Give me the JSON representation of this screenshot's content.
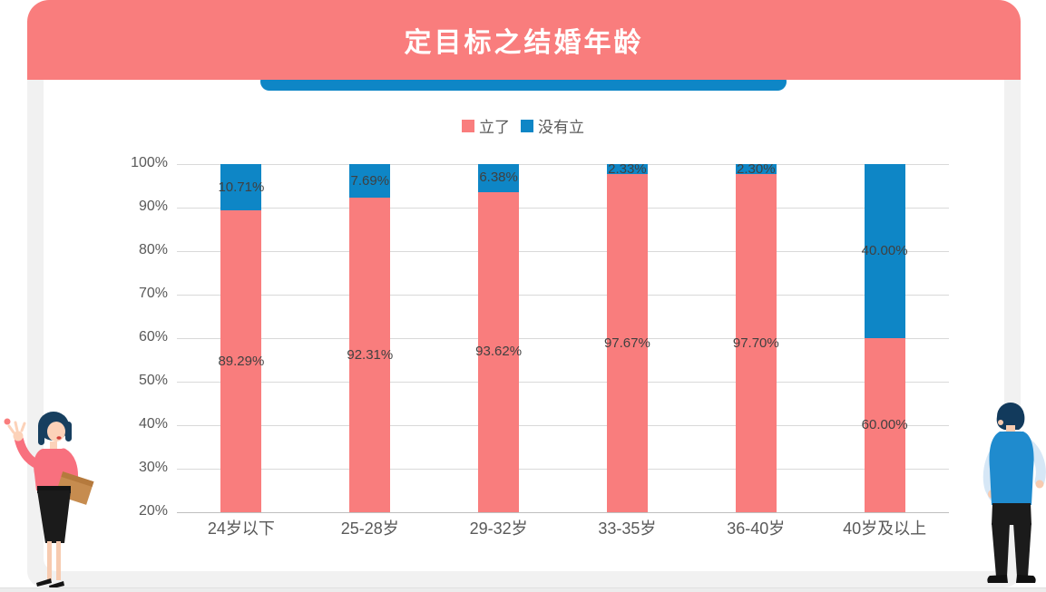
{
  "header": {
    "title": "定目标之结婚年龄"
  },
  "chart_data": {
    "type": "bar",
    "subtype": "stacked-percent-column",
    "title": "定目标之结婚年龄",
    "categories": [
      "24岁以下",
      "25-28岁",
      "29-32岁",
      "33-35岁",
      "36-40岁",
      "40岁及以上"
    ],
    "series": [
      {
        "name": "立了",
        "color": "#f97d7d",
        "values": [
          89.29,
          92.31,
          93.62,
          97.67,
          97.7,
          60.0
        ],
        "labels": [
          "89.29%",
          "92.31%",
          "93.62%",
          "97.67%",
          "97.70%",
          "60.00%"
        ]
      },
      {
        "name": "没有立",
        "color": "#0e86c6",
        "values": [
          10.71,
          7.69,
          6.38,
          2.33,
          2.3,
          40.0
        ],
        "labels": [
          "10.71%",
          "7.69%",
          "6.38%",
          "2.33%",
          "2.30%",
          "40.00%"
        ]
      }
    ],
    "xlabel": "",
    "ylabel": "",
    "ylim": [
      20,
      100
    ],
    "yticks": [
      "100%",
      "90%",
      "80%",
      "70%",
      "60%",
      "50%",
      "40%",
      "30%",
      "20%"
    ],
    "grid": true,
    "legend_position": "top-center",
    "value_label_color": "#404040",
    "tick_label_color": "#595959",
    "gridline_color": "#d9d9d9",
    "axis_line_color": "#bfbfbf"
  },
  "decorations": {
    "left_illustration": "standing-woman-waving-with-folder",
    "right_illustration": "standing-man-back-view"
  },
  "theme": {
    "banner_color": "#f97d7d",
    "accent_bar_color": "#0e86c6",
    "panel_color": "#f1f1f1",
    "card_color": "#ffffff"
  }
}
